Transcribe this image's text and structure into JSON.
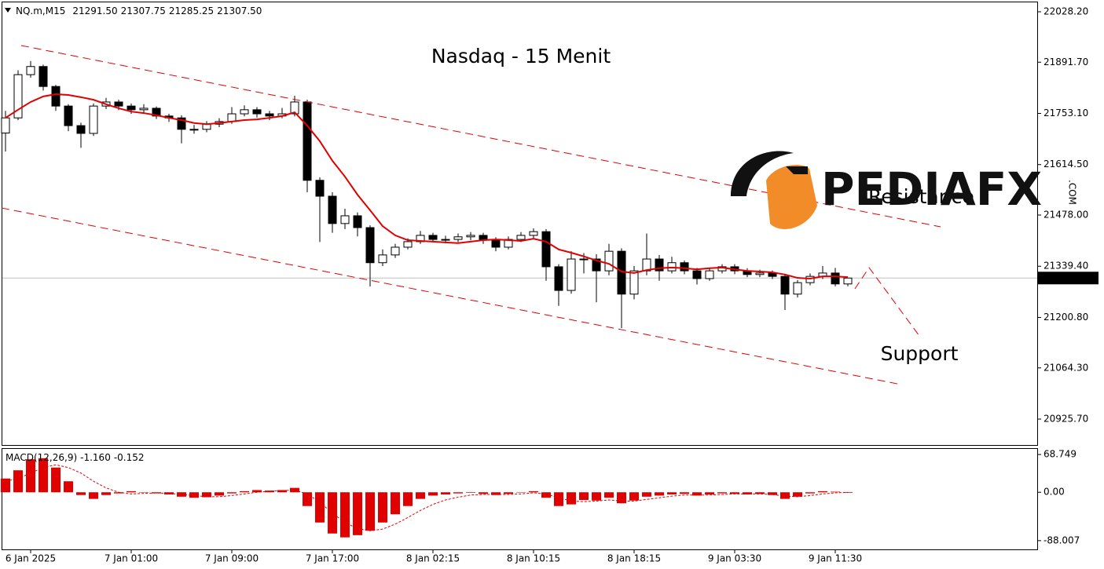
{
  "header": {
    "symbol": "NQ.m,M15",
    "ohlc_labels": [
      "21291.50",
      "21307.75",
      "21285.25",
      "21307.50"
    ]
  },
  "logo": {
    "text": "PEDIAFX",
    "suffix": ".COM"
  },
  "chart_data": [
    {
      "type": "candlestick",
      "title": "Nasdaq - 15 Menit",
      "annotations": [
        "Resistance",
        "Support"
      ],
      "categories": [
        null,
        null,
        "6 Jan 2025",
        null,
        null,
        null,
        null,
        null,
        null,
        null,
        "7 Jan 01:00",
        null,
        null,
        null,
        null,
        null,
        null,
        null,
        "7 Jan 09:00",
        null,
        null,
        null,
        null,
        null,
        null,
        null,
        "7 Jan 17:00",
        null,
        null,
        null,
        null,
        null,
        null,
        null,
        "8 Jan 02:15",
        null,
        null,
        null,
        null,
        null,
        null,
        null,
        "8 Jan 10:15",
        null,
        null,
        null,
        null,
        null,
        null,
        null,
        "8 Jan 18:15",
        null,
        null,
        null,
        null,
        null,
        null,
        null,
        "9 Jan 03:30",
        null,
        null,
        null,
        null,
        null,
        null,
        null,
        "9 Jan 11:30",
        null
      ],
      "open": [
        21700,
        21741,
        21858,
        21880,
        21826,
        21773,
        21720,
        21699,
        21773,
        21784,
        21773,
        21763,
        21767,
        21746,
        21741,
        21710,
        21710,
        21724,
        21731,
        21752,
        21763,
        21752,
        21746,
        21752,
        21784,
        21572,
        21529,
        21455,
        21476,
        21444,
        21349,
        21370,
        21391,
        21406,
        21423,
        21412,
        21412,
        21419,
        21423,
        21412,
        21391,
        21412,
        21423,
        21433,
        21338,
        21274,
        21359,
        21359,
        21327,
        21380,
        21264,
        21327,
        21359,
        21327,
        21349,
        21327,
        21306,
        21327,
        21338,
        21327,
        21317,
        21321,
        21312,
        21264,
        21295,
        21312,
        21321,
        21291.5
      ],
      "high": [
        21760,
        21870,
        21895,
        21885,
        21830,
        21778,
        21728,
        21780,
        21795,
        21790,
        21780,
        21778,
        21772,
        21752,
        21748,
        21722,
        21732,
        21740,
        21770,
        21775,
        21770,
        21760,
        21768,
        21801,
        21790,
        21580,
        21540,
        21495,
        21485,
        21450,
        21385,
        21400,
        21415,
        21435,
        21430,
        21422,
        21428,
        21432,
        21430,
        21418,
        21420,
        21432,
        21442,
        21440,
        21345,
        21380,
        21375,
        21372,
        21400,
        21388,
        21340,
        21428,
        21370,
        21365,
        21355,
        21335,
        21335,
        21345,
        21345,
        21334,
        21330,
        21328,
        21318,
        21302,
        21320,
        21340,
        21335,
        21307.75
      ],
      "low": [
        21650,
        21735,
        21850,
        21815,
        21760,
        21705,
        21660,
        21692,
        21765,
        21762,
        21752,
        21755,
        21738,
        21730,
        21672,
        21698,
        21702,
        21716,
        21725,
        21745,
        21742,
        21735,
        21740,
        21745,
        21540,
        21405,
        21430,
        21440,
        21420,
        21285,
        21340,
        21362,
        21385,
        21400,
        21405,
        21402,
        21405,
        21410,
        21400,
        21380,
        21385,
        21405,
        21415,
        21300,
        21232,
        21265,
        21320,
        21242,
        21315,
        21172,
        21250,
        21315,
        21300,
        21320,
        21318,
        21290,
        21300,
        21320,
        21318,
        21310,
        21310,
        21305,
        21221,
        21255,
        21288,
        21305,
        21285,
        21285.25
      ],
      "close": [
        21741,
        21858,
        21880,
        21826,
        21773,
        21720,
        21699,
        21773,
        21784,
        21773,
        21763,
        21767,
        21746,
        21741,
        21710,
        21710,
        21724,
        21731,
        21752,
        21763,
        21752,
        21746,
        21752,
        21784,
        21572,
        21529,
        21455,
        21476,
        21444,
        21349,
        21370,
        21391,
        21406,
        21423,
        21412,
        21412,
        21419,
        21423,
        21412,
        21391,
        21412,
        21423,
        21433,
        21338,
        21274,
        21359,
        21359,
        21327,
        21380,
        21264,
        21327,
        21359,
        21327,
        21349,
        21327,
        21306,
        21327,
        21338,
        21327,
        21317,
        21321,
        21312,
        21264,
        21295,
        21312,
        21321,
        21291.5,
        21307.5
      ],
      "moving_average": {
        "color": "#e00000",
        "values": [
          21741,
          21763,
          21784,
          21799,
          21805,
          21803,
          21797,
          21790,
          21778,
          21767,
          21758,
          21754,
          21748,
          21741,
          21735,
          21727,
          21724,
          21727,
          21731,
          21735,
          21737,
          21741,
          21746,
          21756,
          21720,
          21678,
          21625,
          21582,
          21533,
          21491,
          21448,
          21423,
          21410,
          21408,
          21406,
          21404,
          21402,
          21406,
          21410,
          21412,
          21410,
          21408,
          21414,
          21406,
          21385,
          21376,
          21366,
          21355,
          21346,
          21325,
          21321,
          21329,
          21334,
          21336,
          21334,
          21331,
          21334,
          21336,
          21331,
          21327,
          21325,
          21323,
          21317,
          21308,
          21306,
          21312,
          21312,
          21310
        ]
      },
      "last_price": {
        "value": 21307.5,
        "label": "21307.50"
      },
      "ylim": [
        20855.6,
        22055.8
      ],
      "yticks": [
        {
          "value": 22028.2,
          "label": "22028.20"
        },
        {
          "value": 21891.7,
          "label": "21891.70"
        },
        {
          "value": 21753.1,
          "label": "21753.10"
        },
        {
          "value": 21614.5,
          "label": "21614.50"
        },
        {
          "value": 21478,
          "label": "21478.00"
        },
        {
          "value": 21339.4,
          "label": "21339.40"
        },
        {
          "value": 21200.8,
          "label": "21200.80"
        },
        {
          "value": 21064.3,
          "label": "21064.30"
        },
        {
          "value": 20925.7,
          "label": "20925.70"
        }
      ],
      "up_color": "#ffffff",
      "down_color": "#000000"
    },
    {
      "type": "macd",
      "title": "MACD(12,26,9)",
      "value_labels": [
        "-1.160",
        "-0.152"
      ],
      "color": "#e00000",
      "histogram": [
        25,
        40,
        60,
        62,
        45,
        20,
        -5,
        -12,
        -5,
        -2,
        2,
        0,
        -2,
        -4,
        -8,
        -10,
        -9,
        -6,
        -2,
        2,
        4,
        3,
        4,
        8,
        -25,
        -55,
        -75,
        -82,
        -78,
        -70,
        -55,
        -40,
        -25,
        -12,
        -6,
        -4,
        -2,
        -1,
        -3,
        -5,
        -3,
        0,
        2,
        -10,
        -25,
        -22,
        -14,
        -15,
        -10,
        -20,
        -15,
        -8,
        -6,
        -4,
        -3,
        -6,
        -4,
        -2,
        -3,
        -4,
        -3,
        -5,
        -12,
        -8,
        -2,
        2,
        1,
        -1.16
      ],
      "signal": [
        20,
        25,
        35,
        45,
        50,
        45,
        35,
        20,
        8,
        0,
        -3,
        -2,
        -1,
        -2,
        -4,
        -6,
        -8,
        -8,
        -6,
        -3,
        0,
        2,
        3,
        4,
        -3,
        -18,
        -38,
        -55,
        -66,
        -70,
        -67,
        -58,
        -46,
        -33,
        -22,
        -14,
        -9,
        -5,
        -4,
        -4,
        -4,
        -3,
        -1,
        -3,
        -10,
        -16,
        -17,
        -16,
        -14,
        -16,
        -16,
        -13,
        -10,
        -7,
        -5,
        -5,
        -5,
        -4,
        -3,
        -3,
        -3,
        -4,
        -7,
        -8,
        -6,
        -3,
        -1,
        -0.152
      ],
      "ylim": [
        -103.9,
        80.3
      ],
      "yticks": [
        68.749,
        {
          "value": 0,
          "label": "0.00"
        },
        -88.007
      ]
    }
  ]
}
